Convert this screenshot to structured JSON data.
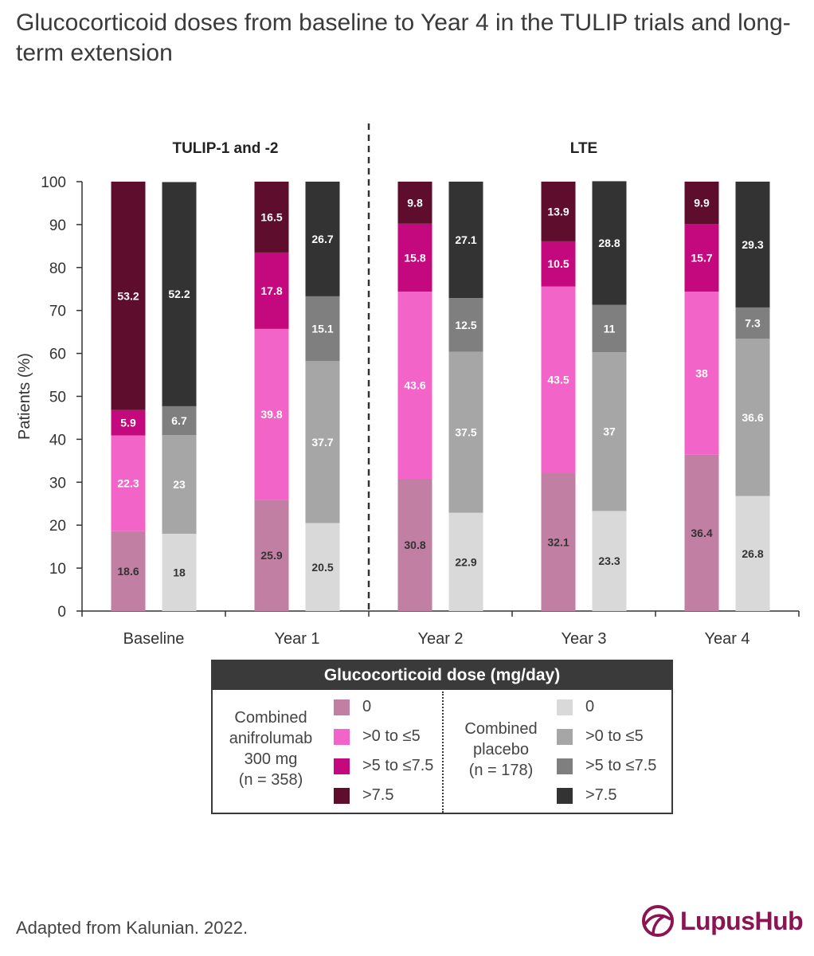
{
  "title": "Glucocorticoid doses from baseline to Year 4 in the TULIP trials and long-term extension",
  "footer": "Adapted from Kalunian. 2022.",
  "logo": {
    "text": "LupusHub",
    "icon": "lupushub-logo-icon",
    "color": "#8a1550"
  },
  "legend": {
    "title": "Glucocorticoid dose (mg/day)",
    "groups": [
      {
        "label_lines": [
          "Combined",
          "anifrolumab",
          "300 mg",
          "(n = 358)"
        ],
        "items": [
          {
            "label": "0",
            "color": "#c17fa3"
          },
          {
            "label": ">0 to ≤5",
            "color": "#f264c8"
          },
          {
            "label": ">5 to ≤7.5",
            "color": "#c4087e"
          },
          {
            "label": ">7.5",
            "color": "#5e0d2c"
          }
        ]
      },
      {
        "label_lines": [
          "Combined",
          "placebo",
          "(n = 178)"
        ],
        "items": [
          {
            "label": "0",
            "color": "#d9d9d9"
          },
          {
            "label": ">0 to ≤5",
            "color": "#a6a6a6"
          },
          {
            "label": ">5 to ≤7.5",
            "color": "#7f7f7f"
          },
          {
            "label": ">7.5",
            "color": "#333333"
          }
        ]
      }
    ]
  },
  "chart_data": {
    "type": "bar",
    "stacked": true,
    "ylabel": "Patients (%)",
    "ylim": [
      0,
      100
    ],
    "yticks": [
      0,
      10,
      20,
      30,
      40,
      50,
      60,
      70,
      80,
      90,
      100
    ],
    "categories": [
      "Baseline",
      "Year 1",
      "Year 2",
      "Year 3",
      "Year 4"
    ],
    "sections": [
      {
        "label": "TULIP-1 and -2",
        "categories": [
          "Baseline",
          "Year 1"
        ]
      },
      {
        "label": "LTE",
        "categories": [
          "Year 2",
          "Year 3",
          "Year 4"
        ]
      }
    ],
    "groups": [
      {
        "name": "Combined anifrolumab 300 mg",
        "series": [
          {
            "name": "0",
            "color": "#c17fa3",
            "label_color": "#333333",
            "values": [
              18.6,
              25.9,
              30.8,
              32.1,
              36.4
            ]
          },
          {
            "name": ">0 to ≤5",
            "color": "#f264c8",
            "label_color": "#ffffff",
            "values": [
              22.3,
              39.8,
              43.6,
              43.5,
              38
            ]
          },
          {
            "name": ">5 to ≤7.5",
            "color": "#c4087e",
            "label_color": "#ffffff",
            "values": [
              5.9,
              17.8,
              15.8,
              10.5,
              15.7
            ]
          },
          {
            "name": ">7.5",
            "color": "#5e0d2c",
            "label_color": "#ffffff",
            "values": [
              53.2,
              16.5,
              9.8,
              13.9,
              9.9
            ]
          }
        ]
      },
      {
        "name": "Combined placebo",
        "series": [
          {
            "name": "0",
            "color": "#d9d9d9",
            "label_color": "#333333",
            "values": [
              18,
              20.5,
              22.9,
              23.3,
              26.8
            ]
          },
          {
            "name": ">0 to ≤5",
            "color": "#a6a6a6",
            "label_color": "#ffffff",
            "values": [
              23,
              37.7,
              37.5,
              37,
              36.6
            ]
          },
          {
            "name": ">5 to ≤7.5",
            "color": "#7f7f7f",
            "label_color": "#ffffff",
            "values": [
              6.7,
              15.1,
              12.5,
              11,
              7.3
            ]
          },
          {
            "name": ">7.5",
            "color": "#333333",
            "label_color": "#ffffff",
            "values": [
              52.2,
              26.7,
              27.1,
              28.8,
              29.3
            ]
          }
        ]
      }
    ]
  }
}
